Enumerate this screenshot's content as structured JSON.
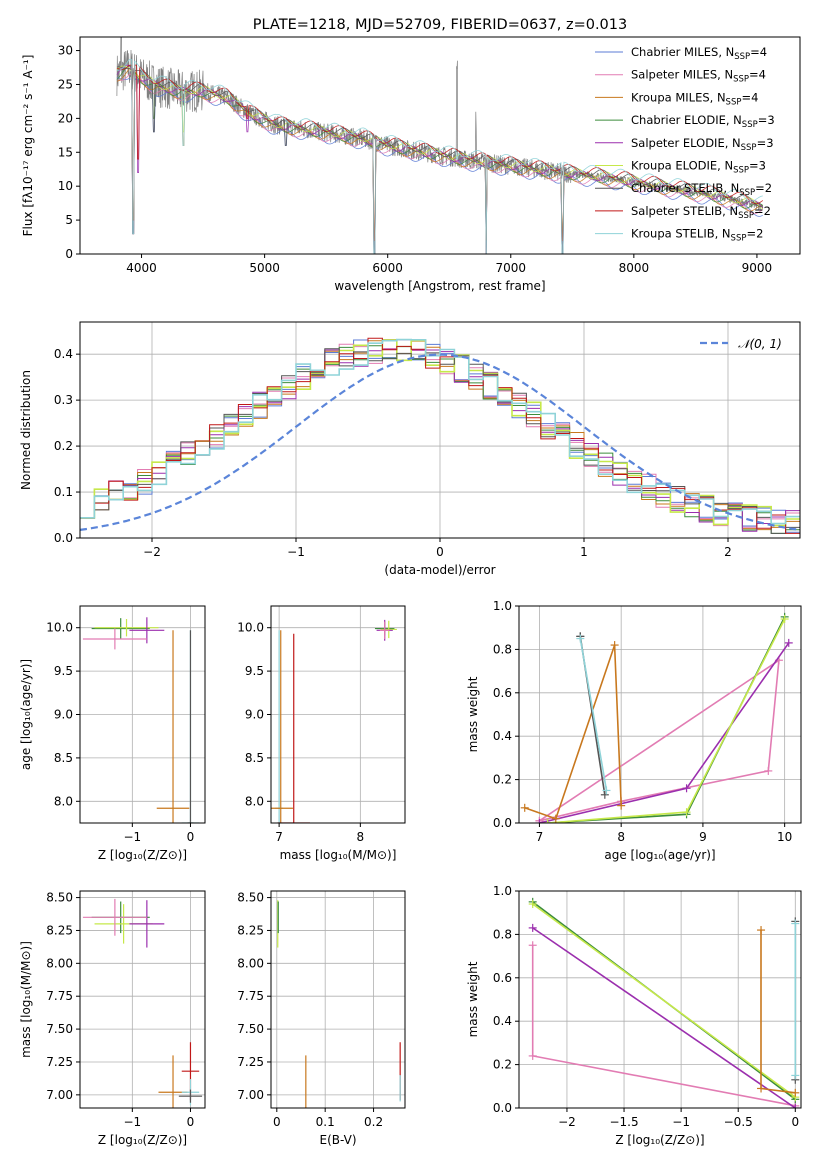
{
  "chart_data": [
    {
      "id": "spectrum",
      "type": "line",
      "title": "PLATE=1218, MJD=52709, FIBERID=0637, z=0.013",
      "xlabel": "wavelength [Angstrom, rest frame]",
      "ylabel": "Flux [fλ10⁻¹⁷ erg cm⁻² s⁻¹ A⁻¹]",
      "xlim": [
        3500,
        9350
      ],
      "ylim": [
        0,
        32
      ],
      "xticks": [
        4000,
        5000,
        6000,
        7000,
        8000,
        9000
      ],
      "yticks": [
        0,
        5,
        10,
        15,
        20,
        25,
        30
      ],
      "grid": false,
      "legend_position": "top-right",
      "observed_color": "#808080",
      "series": [
        {
          "name": "Chabrier MILES, N",
          "sub": "SSP",
          "suffix": "=4",
          "color": "#5b7bd5"
        },
        {
          "name": "Salpeter MILES, N",
          "sub": "SSP",
          "suffix": "=4",
          "color": "#e27cb3"
        },
        {
          "name": "Kroupa MILES, N",
          "sub": "SSP",
          "suffix": "=4",
          "color": "#c8781e"
        },
        {
          "name": "Chabrier ELODIE, N",
          "sub": "SSP",
          "suffix": "=3",
          "color": "#3c8c3c"
        },
        {
          "name": "Salpeter ELODIE, N",
          "sub": "SSP",
          "suffix": "=3",
          "color": "#9b2fae"
        },
        {
          "name": "Kroupa ELODIE, N",
          "sub": "SSP",
          "suffix": "=3",
          "color": "#c6e84a"
        },
        {
          "name": "Chabrier STELIB, N",
          "sub": "SSP",
          "suffix": "=2",
          "color": "#555555"
        },
        {
          "name": "Salpeter STELIB, N",
          "sub": "SSP",
          "suffix": "=2",
          "color": "#c01818"
        },
        {
          "name": "Kroupa STELIB, N",
          "sub": "SSP",
          "suffix": "=2",
          "color": "#8fd3d8"
        }
      ],
      "continuum": [
        [
          3800,
          26.5
        ],
        [
          3900,
          27.5
        ],
        [
          4000,
          26
        ],
        [
          4100,
          25
        ],
        [
          4300,
          24
        ],
        [
          4500,
          24
        ],
        [
          4700,
          23
        ],
        [
          4900,
          20.5
        ],
        [
          5100,
          19
        ],
        [
          5400,
          18.2
        ],
        [
          5800,
          17
        ],
        [
          6000,
          16
        ],
        [
          6300,
          15
        ],
        [
          6600,
          14
        ],
        [
          7000,
          13
        ],
        [
          7400,
          12
        ],
        [
          7800,
          11.2
        ],
        [
          8200,
          10
        ],
        [
          8600,
          8.8
        ],
        [
          9050,
          7
        ]
      ],
      "dips": [
        [
          3930,
          3
        ],
        [
          3970,
          12
        ],
        [
          4101,
          18
        ],
        [
          4340,
          16
        ],
        [
          4861,
          18
        ],
        [
          5175,
          16
        ],
        [
          5893,
          0
        ],
        [
          6563,
          14
        ],
        [
          6800,
          0
        ],
        [
          7420,
          0
        ]
      ]
    },
    {
      "id": "residuals",
      "type": "histogram",
      "xlabel": "(data-model)/error",
      "ylabel": "Normed distribution",
      "xlim": [
        -2.5,
        2.5
      ],
      "ylim": [
        0,
        0.47
      ],
      "xticks": [
        -2,
        -1,
        0,
        1,
        2
      ],
      "yticks": [
        0.0,
        0.1,
        0.2,
        0.3,
        0.4
      ],
      "grid": true,
      "legend_position": "top-right",
      "reference_curve": {
        "name": "𝒩(0, 1)",
        "mean": 0,
        "sigma": 1,
        "color": "#5b85d9"
      },
      "bin_width": 0.1
    },
    {
      "id": "age-vs-Z",
      "type": "errorbar",
      "xlabel": "Z [log₁₀(Z/Z⊙)]",
      "ylabel": "age  [log₁₀(age/yr)]",
      "xlim": [
        -1.9,
        0.25
      ],
      "ylim": [
        7.75,
        10.25
      ],
      "xticks": [
        -1,
        0
      ],
      "yticks": [
        8.0,
        8.5,
        9.0,
        9.5,
        10.0
      ],
      "grid": true,
      "points": [
        {
          "x": -1.2,
          "y": 9.99,
          "xerr": 0.5,
          "yerr": 0.12,
          "color": "#3c8c3c"
        },
        {
          "x": -1.1,
          "y": 10.0,
          "xerr": 0.55,
          "yerr": 0.1,
          "color": "#c6e84a"
        },
        {
          "x": -0.75,
          "y": 9.97,
          "xerr": 0.3,
          "yerr": 0.15,
          "color": "#9b2fae"
        },
        {
          "x": -1.3,
          "y": 9.87,
          "xerr": 0.55,
          "yerr": 0.12,
          "color": "#e27cb3"
        },
        {
          "x": -0.3,
          "y": 7.92,
          "xerr": 0.28,
          "yerr": 2.05,
          "color": "#c8781e"
        },
        {
          "x": 0.0,
          "y": 7.75,
          "xerr": 0.15,
          "yerr": 2.22,
          "color": "#8fd3d8"
        },
        {
          "x": 0.0,
          "y": 7.75,
          "xerr": 0.05,
          "yerr": 2.22,
          "color": "#555555"
        }
      ]
    },
    {
      "id": "age-vs-mass",
      "type": "errorbar",
      "xlabel": "mass [log₁₀(M/M⊙)]",
      "ylabel": "",
      "xlim": [
        6.9,
        8.55
      ],
      "ylim": [
        7.75,
        10.25
      ],
      "xticks": [
        7,
        8
      ],
      "yticks": [
        8.0,
        8.5,
        9.0,
        9.5,
        10.0
      ],
      "grid": true,
      "points": [
        {
          "x": 8.3,
          "y": 9.99,
          "xerr": 0.12,
          "yerr": 0.08,
          "color": "#3c8c3c"
        },
        {
          "x": 8.35,
          "y": 9.98,
          "xerr": 0.1,
          "yerr": 0.1,
          "color": "#c6e84a"
        },
        {
          "x": 8.3,
          "y": 9.97,
          "xerr": 0.1,
          "yerr": 0.12,
          "color": "#9b2fae"
        },
        {
          "x": 8.3,
          "y": 9.97,
          "xerr": 0.06,
          "yerr": 0.1,
          "color": "#e27cb3"
        },
        {
          "x": 7.0,
          "y": 7.92,
          "xerr": 0.05,
          "yerr": 2.05,
          "color": "#8fd3d8"
        },
        {
          "x": 7.02,
          "y": 7.92,
          "xerr": 0.15,
          "yerr": 2.05,
          "color": "#c8781e"
        },
        {
          "x": 7.18,
          "y": 7.75,
          "xerr": 0.2,
          "yerr": 2.18,
          "color": "#c01818"
        }
      ]
    },
    {
      "id": "massweight-vs-age",
      "type": "line",
      "xlabel": "age  [log₁₀(age/yr)]",
      "ylabel": "mass weight",
      "xlim": [
        6.75,
        10.2
      ],
      "ylim": [
        0,
        1.0
      ],
      "xticks": [
        7,
        8,
        9,
        10
      ],
      "yticks": [
        0.0,
        0.2,
        0.4,
        0.6,
        0.8,
        1.0
      ],
      "grid": true,
      "series": [
        {
          "color": "#e27cb3",
          "points": [
            [
              7.0,
              0.01
            ],
            [
              8.0,
              0.1
            ],
            [
              9.8,
              0.24
            ],
            [
              9.93,
              0.75
            ],
            [
              7.0,
              0.01
            ]
          ]
        },
        {
          "color": "#9b2fae",
          "points": [
            [
              7.0,
              0.0
            ],
            [
              8.8,
              0.16
            ],
            [
              10.05,
              0.83
            ]
          ]
        },
        {
          "color": "#3c8c3c",
          "points": [
            [
              7.1,
              0.0
            ],
            [
              8.8,
              0.04
            ],
            [
              10.0,
              0.95
            ]
          ]
        },
        {
          "color": "#c6e84a",
          "points": [
            [
              7.1,
              0.0
            ],
            [
              8.8,
              0.05
            ],
            [
              10.0,
              0.94
            ]
          ]
        },
        {
          "color": "#c8781e",
          "points": [
            [
              6.82,
              0.07
            ],
            [
              7.2,
              0.02
            ],
            [
              7.92,
              0.82
            ],
            [
              8.0,
              0.08
            ]
          ]
        },
        {
          "color": "#555555",
          "points": [
            [
              7.5,
              0.86
            ],
            [
              7.8,
              0.13
            ],
            [
              7.5,
              0.86
            ]
          ]
        },
        {
          "color": "#8fd3d8",
          "points": [
            [
              7.5,
              0.85
            ],
            [
              7.82,
              0.15
            ]
          ]
        }
      ]
    },
    {
      "id": "mass-vs-Z",
      "type": "errorbar",
      "xlabel": "Z [log₁₀(Z/Z⊙)]",
      "ylabel": "mass [log₁₀(M/M⊙)]",
      "xlim": [
        -1.9,
        0.25
      ],
      "ylim": [
        6.9,
        8.55
      ],
      "xticks": [
        -1,
        0
      ],
      "yticks": [
        7.0,
        7.25,
        7.5,
        7.75,
        8.0,
        8.25,
        8.5
      ],
      "grid": true,
      "points": [
        {
          "x": -1.2,
          "y": 8.35,
          "xerr": 0.5,
          "yerr": 0.12,
          "color": "#3c8c3c"
        },
        {
          "x": -1.15,
          "y": 8.3,
          "xerr": 0.5,
          "yerr": 0.15,
          "color": "#c6e84a"
        },
        {
          "x": -0.75,
          "y": 8.3,
          "xerr": 0.3,
          "yerr": 0.18,
          "color": "#9b2fae"
        },
        {
          "x": -1.3,
          "y": 8.35,
          "xerr": 0.55,
          "yerr": 0.14,
          "color": "#e27cb3"
        },
        {
          "x": -0.3,
          "y": 7.02,
          "xerr": 0.25,
          "yerr": 0.28,
          "color": "#c8781e"
        },
        {
          "x": 0.0,
          "y": 7.18,
          "xerr": 0.15,
          "yerr": 0.22,
          "color": "#c01818"
        },
        {
          "x": 0.0,
          "y": 7.02,
          "xerr": 0.15,
          "yerr": 0.1,
          "color": "#8fd3d8"
        },
        {
          "x": 0.0,
          "y": 6.99,
          "xerr": 0.2,
          "yerr": 0.05,
          "color": "#555555"
        }
      ]
    },
    {
      "id": "mass-vs-EBV",
      "type": "errorbar",
      "xlabel": "E(B-V)",
      "ylabel": "",
      "xlim": [
        -0.012,
        0.265
      ],
      "ylim": [
        6.9,
        8.55
      ],
      "xticks": [
        0.0,
        0.1,
        0.2
      ],
      "yticks": [
        7.0,
        7.25,
        7.5,
        7.75,
        8.0,
        8.25,
        8.5
      ],
      "grid": true,
      "points": [
        {
          "x": 0.002,
          "y": 8.3,
          "xerr": 0.0,
          "yerr": 0.18,
          "color": "#c6e84a"
        },
        {
          "x": 0.003,
          "y": 8.35,
          "xerr": 0.0,
          "yerr": 0.12,
          "color": "#3c8c3c"
        },
        {
          "x": 0.06,
          "y": 7.02,
          "xerr": 0.0,
          "yerr": 0.28,
          "color": "#c8781e"
        },
        {
          "x": 0.255,
          "y": 7.18,
          "xerr": 0.0,
          "yerr": 0.22,
          "color": "#c01818"
        },
        {
          "x": 0.255,
          "y": 7.05,
          "xerr": 0.0,
          "yerr": 0.1,
          "color": "#8fd3d8"
        }
      ]
    },
    {
      "id": "massweight-vs-Z",
      "type": "line",
      "xlabel": "Z [log₁₀(Z/Z⊙)]",
      "ylabel": "mass weight",
      "xlim": [
        -2.42,
        0.05
      ],
      "ylim": [
        0,
        1.0
      ],
      "xticks": [
        -2.0,
        -1.5,
        -1.0,
        -0.5,
        0.0
      ],
      "yticks": [
        0.0,
        0.2,
        0.4,
        0.6,
        0.8,
        1.0
      ],
      "grid": true,
      "series": [
        {
          "color": "#e27cb3",
          "points": [
            [
              -2.3,
              0.75
            ],
            [
              -2.3,
              0.24
            ],
            [
              0.0,
              0.01
            ]
          ]
        },
        {
          "color": "#9b2fae",
          "points": [
            [
              -2.3,
              0.83
            ],
            [
              0.0,
              0.0
            ]
          ]
        },
        {
          "color": "#3c8c3c",
          "points": [
            [
              -2.3,
              0.95
            ],
            [
              0.0,
              0.04
            ]
          ]
        },
        {
          "color": "#c6e84a",
          "points": [
            [
              -2.3,
              0.94
            ],
            [
              0.0,
              0.05
            ]
          ]
        },
        {
          "color": "#c8781e",
          "points": [
            [
              -0.3,
              0.82
            ],
            [
              -0.3,
              0.09
            ],
            [
              0.0,
              0.07
            ]
          ]
        },
        {
          "color": "#555555",
          "points": [
            [
              0.0,
              0.86
            ],
            [
              0.0,
              0.13
            ]
          ]
        },
        {
          "color": "#8fd3d8",
          "points": [
            [
              0.0,
              0.85
            ],
            [
              0.0,
              0.15
            ]
          ]
        }
      ]
    }
  ]
}
